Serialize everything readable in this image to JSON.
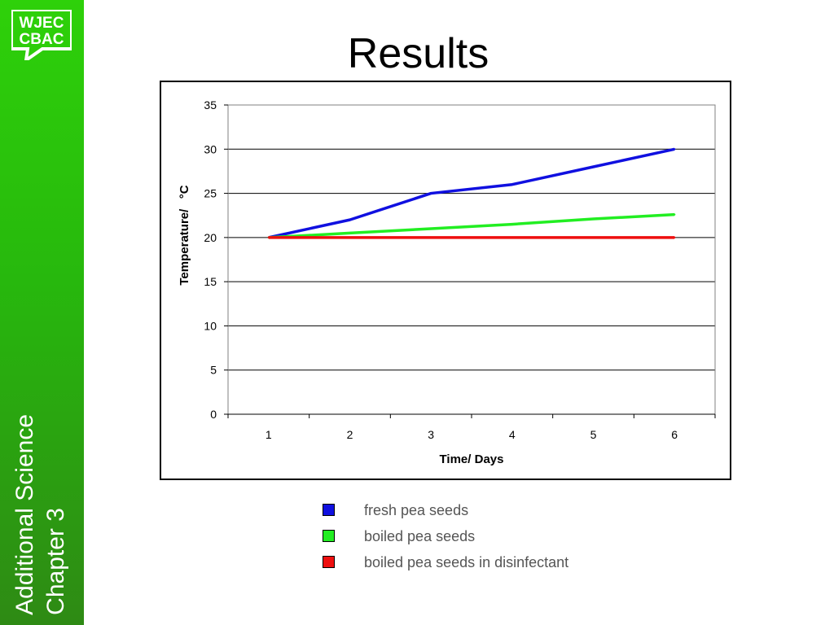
{
  "slide": {
    "title": "Results",
    "logo_line1": "WJEC",
    "logo_line2": "CBAC",
    "sidebar_line1": "Additional Science",
    "sidebar_line2": "Chapter 3",
    "sidebar_color": "#2ebd0f"
  },
  "chart_data": {
    "type": "line",
    "title": "",
    "xlabel": "Time/ Days",
    "ylabel": "Temperature/   °C",
    "categories": [
      "1",
      "2",
      "3",
      "4",
      "5",
      "6"
    ],
    "ylim": [
      0,
      35
    ],
    "yticks": [
      0,
      5,
      10,
      15,
      20,
      25,
      30,
      35
    ],
    "grid": true,
    "legend_position": "bottom",
    "series": [
      {
        "name": "fresh pea seeds",
        "color": "#1010e0",
        "values": [
          20,
          22,
          25,
          26,
          28,
          30
        ]
      },
      {
        "name": "boiled pea seeds",
        "color": "#22ee22",
        "values": [
          20,
          20.5,
          21,
          21.5,
          22.1,
          22.6
        ]
      },
      {
        "name": "boiled pea seeds in disinfectant",
        "color": "#ee0f0f",
        "values": [
          20,
          20,
          20,
          20,
          20,
          20
        ]
      }
    ]
  }
}
